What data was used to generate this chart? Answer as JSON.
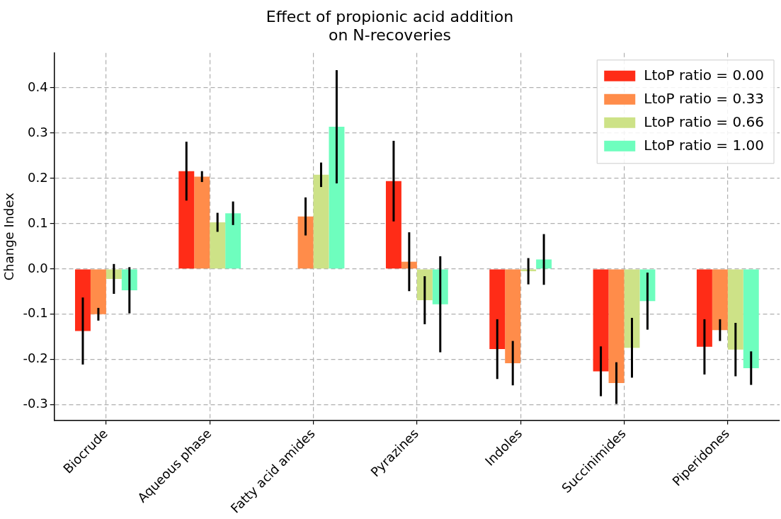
{
  "chart_data": {
    "type": "bar",
    "title": "Effect of propionic acid addition\non N-recoveries",
    "ylabel": "Change Index",
    "categories": [
      "Biocrude",
      "Aqueous phase",
      "Fatty acid amides",
      "Pyrazines",
      "Indoles",
      "Succinimides",
      "Piperidones"
    ],
    "series": [
      {
        "name": "LtoP ratio = 0.00",
        "color": "#ff2c17",
        "values": [
          -0.137,
          0.216,
          0,
          0.194,
          -0.177,
          -0.226,
          -0.172
        ],
        "errors": [
          0.074,
          0.065,
          null,
          0.089,
          0.066,
          0.055,
          0.061
        ]
      },
      {
        "name": "LtoP ratio = 0.33",
        "color": "#ff8c4a",
        "values": [
          -0.1,
          0.204,
          0.116,
          0.016,
          -0.208,
          -0.252,
          -0.135
        ],
        "errors": [
          0.014,
          0.012,
          0.042,
          0.065,
          0.049,
          0.046,
          0.024
        ]
      },
      {
        "name": "LtoP ratio = 0.66",
        "color": "#cde287",
        "values": [
          -0.022,
          0.103,
          0.208,
          -0.069,
          -0.005,
          -0.174,
          -0.178
        ],
        "errors": [
          0.033,
          0.021,
          0.027,
          0.053,
          0.029,
          0.066,
          0.059
        ]
      },
      {
        "name": "LtoP ratio = 1.00",
        "color": "#6efebe",
        "values": [
          -0.047,
          0.123,
          0.314,
          -0.078,
          0.021,
          -0.071,
          -0.219
        ],
        "errors": [
          0.051,
          0.026,
          0.125,
          0.106,
          0.056,
          0.063,
          0.037
        ]
      }
    ],
    "ylim": [
      -0.334,
      0.477
    ],
    "yticks": [
      -0.3,
      -0.2,
      -0.1,
      {
        "value": 0,
        "label": "0.0"
      },
      0.1,
      0.2,
      0.3,
      0.4
    ],
    "grid": true,
    "legend": "top right"
  }
}
